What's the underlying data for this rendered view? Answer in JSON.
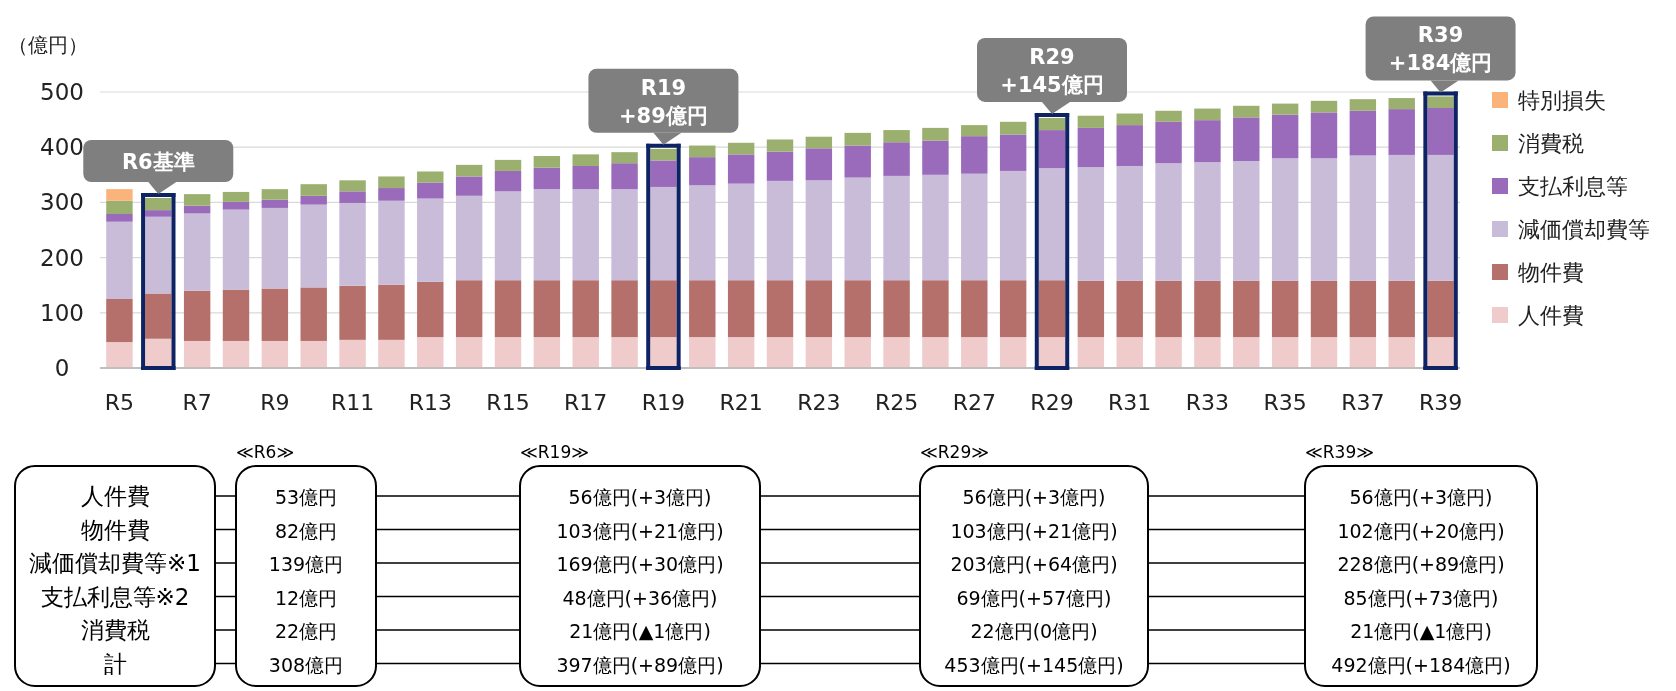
{
  "chart_data": {
    "type": "bar",
    "stacked": true,
    "ylabel": "（億円）",
    "categories": [
      "R5",
      null,
      "R7",
      null,
      "R9",
      null,
      "R11",
      null,
      "R13",
      null,
      "R15",
      null,
      "R17",
      null,
      "R19",
      null,
      "R21",
      null,
      "R23",
      null,
      "R25",
      null,
      "R27",
      null,
      "R29",
      null,
      "R31",
      null,
      "R33",
      null,
      "R35",
      null,
      "R37",
      null,
      "R39"
    ],
    "series": [
      {
        "name": "人件費",
        "color": "#efcbcb",
        "values": [
          47,
          53,
          49,
          49,
          49,
          49,
          51,
          51,
          56,
          56,
          56,
          56,
          56,
          56,
          56,
          56,
          56,
          56,
          56,
          56,
          56,
          56,
          56,
          56,
          56,
          56,
          56,
          56,
          56,
          56,
          56,
          56,
          56,
          56,
          56
        ]
      },
      {
        "name": "物件費",
        "color": "#b5706b",
        "values": [
          78,
          82,
          91,
          93,
          95,
          97,
          98,
          100,
          100,
          103,
          103,
          103,
          103,
          103,
          103,
          103,
          103,
          103,
          103,
          103,
          103,
          103,
          103,
          103,
          103,
          102,
          102,
          102,
          102,
          102,
          102,
          102,
          102,
          102,
          102
        ]
      },
      {
        "name": "減価償却費等",
        "color": "#c9bcd9",
        "values": [
          140,
          139,
          140,
          145,
          146,
          150,
          150,
          152,
          151,
          153,
          161,
          165,
          165,
          165,
          169,
          172,
          175,
          180,
          181,
          186,
          189,
          191,
          193,
          198,
          203,
          206,
          208,
          213,
          215,
          217,
          222,
          222,
          227,
          228,
          228
        ]
      },
      {
        "name": "支払利息等",
        "color": "#9a6bbb",
        "values": [
          14,
          12,
          14,
          14,
          15,
          16,
          21,
          23,
          29,
          35,
          37,
          39,
          42,
          47,
          48,
          51,
          53,
          53,
          58,
          58,
          61,
          62,
          68,
          66,
          69,
          71,
          74,
          75,
          76,
          79,
          79,
          83,
          81,
          83,
          85
        ]
      },
      {
        "name": "消費税",
        "color": "#9bb06e",
        "values": [
          24,
          22,
          21,
          18,
          19,
          21,
          20,
          21,
          20,
          21,
          20,
          21,
          21,
          20,
          21,
          21,
          21,
          22,
          21,
          23,
          22,
          23,
          20,
          23,
          22,
          22,
          21,
          20,
          21,
          21,
          20,
          21,
          21,
          20,
          21
        ]
      },
      {
        "name": "特別損失",
        "color": "#fab37b",
        "values": [
          21,
          null,
          null,
          null,
          null,
          null,
          null,
          null,
          null,
          null,
          null,
          null,
          null,
          null,
          null,
          null,
          null,
          null,
          null,
          null,
          null,
          null,
          null,
          null,
          null,
          null,
          null,
          null,
          null,
          null,
          null,
          null,
          null,
          null,
          null
        ]
      }
    ],
    "ylim": [
      0,
      500
    ],
    "yticks": [
      0,
      100,
      200,
      300,
      400,
      500
    ],
    "grid": "y",
    "legend": "right",
    "annotations": [
      {
        "text": "R6基準",
        "y": 308
      },
      {
        "text": "R19\n+89億円",
        "x": "R19",
        "y": 397
      },
      {
        "text": "R29\n+145億円",
        "x": "R29",
        "y": 453
      },
      {
        "text": "R39\n+184億円",
        "x": "R39",
        "y": 492
      },
      "人件費",
      "物件費",
      "減価償却費等※1",
      "支払利息等※2",
      "消費税",
      "計",
      "≪R6≫",
      "53億円",
      "82億円",
      "139億円",
      "12億円",
      "22億円",
      "308億円",
      "≪R19≫",
      "56億円(+3億円)",
      "103億円(+21億円)",
      "169億円(+30億円)",
      "48億円(+36億円)",
      "21億円(▲1億円)",
      "397億円(+89億円)",
      "≪R29≫",
      "56億円(+3億円)",
      "103億円(+21億円)",
      "203億円(+64億円)",
      "69億円(+57億円)",
      "22億円(0億円)",
      "453億円(+145億円)",
      "≪R39≫",
      "56億円(+3億円)",
      "102億円(+20億円)",
      "228億円(+89億円)",
      "85億円(+73億円)",
      "21億円(▲1億円)",
      "492億円(+184億円)"
    ]
  }
}
